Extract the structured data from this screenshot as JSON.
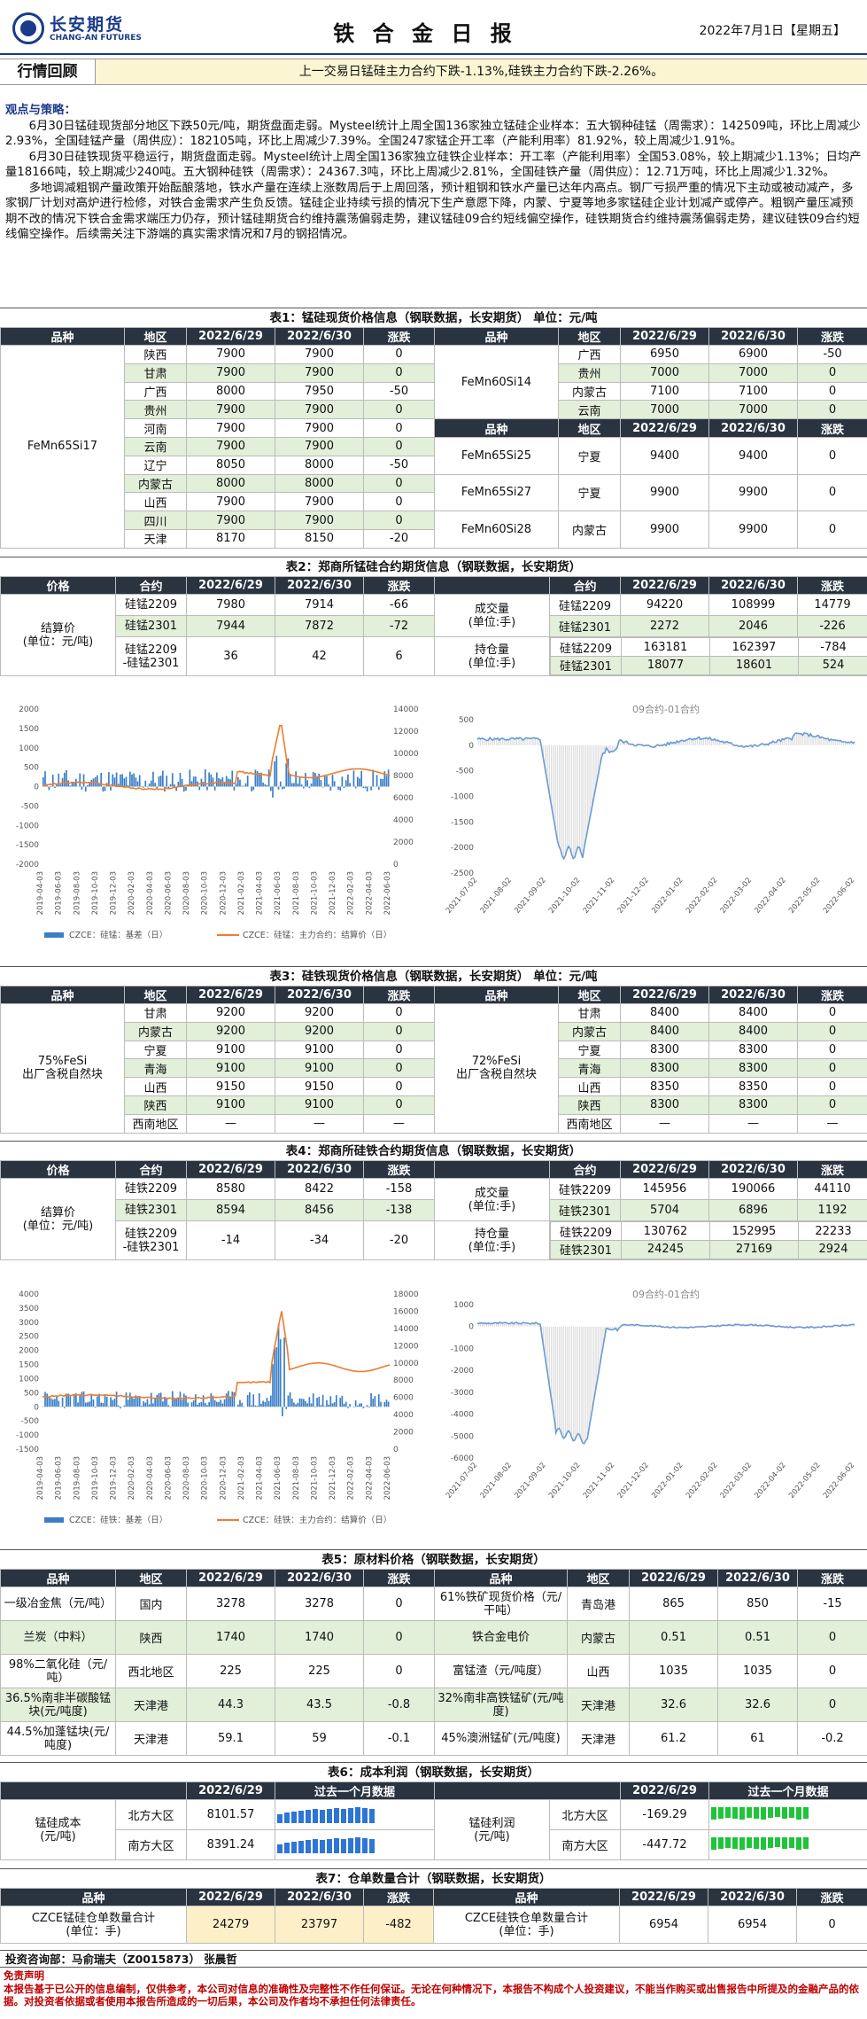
{
  "header": {
    "brand_cn": "长安期货",
    "brand_en": "CHANG-AN FUTURES",
    "title": "铁 合 金 日 报",
    "date": "2022年7月1日【星期五】"
  },
  "review": {
    "label": "行情回顾",
    "text": "上一交易日锰硅主力合约下跌-1.13%,硅铁主力合约下跌-2.26%。"
  },
  "strategy": {
    "heading": "观点与策略：",
    "p1": "6月30日锰硅现货部分地区下跌50元/吨，期货盘面走弱。Mysteel统计上周全国136家独立锰硅企业样本：五大钢种硅锰（周需求）：142509吨，环比上周减少2.93%，全国硅锰产量（周供应）：182105吨，环比上周减少7.39%。全国247家锰企开工率（产能利用率）81.92%，较上周减少1.91%。",
    "p2": "6月30日硅铁现货平稳运行，期货盘面走弱。Mysteel统计上周全国136家独立硅铁企业样本：开工率（产能利用率）全国53.08%，较上期减少1.13%；日均产量18166吨，较上期减少240吨。五大钢种硅铁（周需求）：24367.3吨，环比上周减少2.81%，全国硅铁产量（周供应）：12.71万吨，环比上周减少1.32%。",
    "p3": "多地调减粗钢产量政策开始酝酿落地，铁水产量在连续上涨数周后于上周回落，预计粗钢和铁水产量已达年内高点。钢厂亏损严重的情况下主动或被动减产，多家钢厂计划对高炉进行检修，对铁合金需求产生负反馈。锰硅企业持续亏损的情况下生产意愿下降，内蒙、宁夏等地多家锰硅企业计划减产或停产。粗钢产量压减预期不改的情况下铁合金需求端压力仍存，预计锰硅期货合约维持震荡偏弱走势，建议锰硅09合约短线偏空操作，硅铁期货合约维持震荡偏弱走势，建议硅铁09合约短线偏空操作。后续需关注下游端的真实需求情况和7月的钢招情况。"
  },
  "t1": {
    "caption": "表1：锰硅现货价格信息（钢联数据，长安期货） 单位：元/吨",
    "head": [
      "品种",
      "地区",
      "2022/6/29",
      "2022/6/30",
      "涨跌",
      "品种",
      "地区",
      "2022/6/29",
      "2022/6/30",
      "涨跌"
    ],
    "left_name": "FeMn65Si17",
    "left": [
      [
        "陕西",
        "7900",
        "7900",
        "0"
      ],
      [
        "甘肃",
        "7900",
        "7900",
        "0"
      ],
      [
        "广西",
        "8000",
        "7950",
        "-50"
      ],
      [
        "贵州",
        "7900",
        "7900",
        "0"
      ],
      [
        "河南",
        "7900",
        "7900",
        "0"
      ],
      [
        "云南",
        "7900",
        "7900",
        "0"
      ],
      [
        "辽宁",
        "8050",
        "8000",
        "-50"
      ],
      [
        "内蒙古",
        "8000",
        "8000",
        "0"
      ],
      [
        "山西",
        "7900",
        "7900",
        "0"
      ],
      [
        "四川",
        "7900",
        "7900",
        "0"
      ],
      [
        "天津",
        "8170",
        "8150",
        "-20"
      ]
    ],
    "r1_name": "FeMn60Si14",
    "r1": [
      [
        "广西",
        "6950",
        "6900",
        "-50"
      ],
      [
        "贵州",
        "7000",
        "7000",
        "0"
      ],
      [
        "内蒙古",
        "7100",
        "7100",
        "0"
      ],
      [
        "云南",
        "7000",
        "7000",
        "0"
      ]
    ],
    "r_head2": [
      "品种",
      "地区",
      "2022/6/29",
      "2022/6/30",
      "涨跌"
    ],
    "r2": [
      [
        "FeMn65Si25",
        "宁夏",
        "9400",
        "9400",
        "0"
      ],
      [
        "FeMn65Si27",
        "宁夏",
        "9900",
        "9900",
        "0"
      ],
      [
        "FeMn60Si28",
        "内蒙古",
        "9900",
        "9900",
        "0"
      ]
    ]
  },
  "t2": {
    "caption": "表2：郑商所锰硅合约期货信息（钢联数据，长安期货）",
    "head": [
      "价格",
      "合约",
      "2022/6/29",
      "2022/6/30",
      "涨跌",
      "",
      "合约",
      "2022/6/29",
      "2022/6/30",
      "涨跌"
    ],
    "settle": "结算价\n(单位：元/吨)",
    "rows": [
      [
        "硅锰2209",
        "7980",
        "7914",
        "-66"
      ],
      [
        "硅锰2301",
        "7944",
        "7872",
        "-72"
      ],
      [
        "硅锰2209\n-硅锰2301",
        "36",
        "42",
        "6"
      ]
    ],
    "vol_label": "成交量\n(单位:手)",
    "oi_label": "持仓量\n(单位:手)",
    "vol": [
      [
        "硅锰2209",
        "94220",
        "108999",
        "14779"
      ],
      [
        "硅锰2301",
        "2272",
        "2046",
        "-226"
      ]
    ],
    "oi": [
      [
        "硅锰2209",
        "163181",
        "162397",
        "-784"
      ],
      [
        "硅锰2301",
        "18077",
        "18601",
        "524"
      ]
    ]
  },
  "chart1": {
    "legend_a": "CZCE：硅锰：基差（日）",
    "legend_b": "CZCE：硅锰：主力合约：结算价（日）",
    "yl": [
      "2000",
      "1500",
      "1000",
      "500",
      "0",
      "-500",
      "-1000",
      "-1500",
      "-2000"
    ],
    "yr": [
      "14000",
      "12000",
      "10000",
      "8000",
      "6000",
      "4000",
      "2000",
      "0"
    ],
    "xt": [
      "2019-04-03",
      "2019-06-03",
      "2019-08-03",
      "2019-10-03",
      "2019-12-03",
      "2020-02-03",
      "2020-04-03",
      "2020-06-03",
      "2020-08-03",
      "2020-10-03",
      "2020-12-03",
      "2021-02-03",
      "2021-04-03",
      "2021-06-03",
      "2021-08-03",
      "2021-10-03",
      "2021-12-03",
      "2022-02-03",
      "2022-04-03",
      "2022-06-03"
    ]
  },
  "chart2": {
    "title": "09合约-01合约",
    "yl": [
      "500",
      "0",
      "-500",
      "-1000",
      "-1500",
      "-2000",
      "-2500"
    ],
    "xt": [
      "2021-07-02",
      "2021-08-02",
      "2021-09-02",
      "2021-10-02",
      "2021-11-02",
      "2021-12-02",
      "2022-01-02",
      "2022-02-02",
      "2022-03-02",
      "2022-04-02",
      "2022-05-02",
      "2022-06-02"
    ]
  },
  "t3": {
    "caption": "表3：硅铁现货价格信息（钢联数据，长安期货） 单位：元/吨",
    "head": [
      "品种",
      "地区",
      "2022/6/29",
      "2022/6/30",
      "涨跌",
      "品种",
      "地区",
      "2022/6/29",
      "2022/6/30",
      "涨跌"
    ],
    "left_name": "75%FeSi\n出厂含税自然块",
    "right_name": "72%FeSi\n出厂含税自然块",
    "left": [
      [
        "甘肃",
        "9200",
        "9200",
        "0"
      ],
      [
        "内蒙古",
        "9200",
        "9200",
        "0"
      ],
      [
        "宁夏",
        "9100",
        "9100",
        "0"
      ],
      [
        "青海",
        "9100",
        "9100",
        "0"
      ],
      [
        "山西",
        "9150",
        "9150",
        "0"
      ],
      [
        "陕西",
        "9100",
        "9100",
        "0"
      ],
      [
        "西南地区",
        "—",
        "—",
        "—"
      ]
    ],
    "right": [
      [
        "甘肃",
        "8400",
        "8400",
        "0"
      ],
      [
        "内蒙古",
        "8400",
        "8400",
        "0"
      ],
      [
        "宁夏",
        "8300",
        "8300",
        "0"
      ],
      [
        "青海",
        "8300",
        "8300",
        "0"
      ],
      [
        "山西",
        "8350",
        "8350",
        "0"
      ],
      [
        "陕西",
        "8300",
        "8300",
        "0"
      ],
      [
        "西南地区",
        "—",
        "—",
        "—"
      ]
    ]
  },
  "t4": {
    "caption": "表4：郑商所硅铁合约期货信息（钢联数据，长安期货）",
    "head": [
      "价格",
      "合约",
      "2022/6/29",
      "2022/6/30",
      "涨跌",
      "",
      "合约",
      "2022/6/29",
      "2022/6/30",
      "涨跌"
    ],
    "settle": "结算价\n(单位：元/吨)",
    "rows": [
      [
        "硅铁2209",
        "8580",
        "8422",
        "-158"
      ],
      [
        "硅铁2301",
        "8594",
        "8456",
        "-138"
      ],
      [
        "硅铁2209\n-硅铁2301",
        "-14",
        "-34",
        "-20"
      ]
    ],
    "vol_label": "成交量\n(单位:手)",
    "oi_label": "持仓量\n(单位:手)",
    "vol": [
      [
        "硅铁2209",
        "145956",
        "190066",
        "44110"
      ],
      [
        "硅铁2301",
        "5704",
        "6896",
        "1192"
      ]
    ],
    "oi": [
      [
        "硅铁2209",
        "130762",
        "152995",
        "22233"
      ],
      [
        "硅铁2301",
        "24245",
        "27169",
        "2924"
      ]
    ]
  },
  "chart3": {
    "legend_a": "CZCE：硅铁：基差（日）",
    "legend_b": "CZCE：硅铁：主力合约：结算价（日）",
    "yl": [
      "4000",
      "3500",
      "3000",
      "2500",
      "2000",
      "1500",
      "1000",
      "500",
      "0",
      "-500",
      "-1000",
      "-1500"
    ],
    "yr": [
      "18000",
      "16000",
      "14000",
      "12000",
      "10000",
      "8000",
      "6000",
      "4000",
      "2000",
      "0"
    ],
    "xt": [
      "2019-04-03",
      "2019-06-03",
      "2019-08-03",
      "2019-10-03",
      "2019-12-03",
      "2020-02-03",
      "2020-04-03",
      "2020-06-03",
      "2020-08-03",
      "2020-10-03",
      "2020-12-03",
      "2021-02-03",
      "2021-04-03",
      "2021-06-03",
      "2021-08-03",
      "2021-10-03",
      "2021-12-03",
      "2022-02-03",
      "2022-04-03",
      "2022-06-03"
    ]
  },
  "chart4": {
    "title": "09合约-01合约",
    "yl": [
      "1000",
      "0",
      "-1000",
      "-2000",
      "-3000",
      "-4000",
      "-5000",
      "-6000"
    ],
    "xt": [
      "2021-07-02",
      "2021-08-02",
      "2021-09-02",
      "2021-10-02",
      "2021-11-02",
      "2021-12-02",
      "2022-01-02",
      "2022-02-02",
      "2022-03-02",
      "2022-04-02",
      "2022-05-02",
      "2022-06-02"
    ]
  },
  "t5": {
    "caption": "表5：原材料价格（钢联数据，长安期货）",
    "head": [
      "品种",
      "地区",
      "2022/6/29",
      "2022/6/30",
      "涨跌",
      "品种",
      "地区",
      "2022/6/29",
      "2022/6/30",
      "涨跌"
    ],
    "rows": [
      [
        "一级冶金焦（元/吨）",
        "国内",
        "3278",
        "3278",
        "0",
        "61%铁矿现货价格（元/干吨）",
        "青岛港",
        "865",
        "850",
        "-15"
      ],
      [
        "兰炭（中料）",
        "陕西",
        "1740",
        "1740",
        "0",
        "铁合金电价",
        "内蒙古",
        "0.51",
        "0.51",
        "0"
      ],
      [
        "98%二氧化硅（元/吨）",
        "西北地区",
        "225",
        "225",
        "0",
        "富锰渣（元/吨度）",
        "山西",
        "1035",
        "1035",
        "0"
      ],
      [
        "36.5%南非半碳酸锰块(元/吨度)",
        "天津港",
        "44.3",
        "43.5",
        "-0.8",
        "32%南非高铁锰矿(元/吨度)",
        "天津港",
        "32.6",
        "32.6",
        "0"
      ],
      [
        "44.5%加蓬锰块(元/吨度)",
        "天津港",
        "59.1",
        "59",
        "-0.1",
        "45%澳洲锰矿(元/吨度)",
        "天津港",
        "61.2",
        "61",
        "-0.2"
      ]
    ]
  },
  "t6": {
    "caption": "表6：成本利润（钢联数据，长安期货）",
    "head": [
      "2022/6/29",
      "过去一个月数据",
      "2022/6/29",
      "过去一个月数据"
    ],
    "cost_label": "锰硅成本\n(元/吨)",
    "profit_label": "锰硅利润\n(元/吨)",
    "cost": [
      [
        "北方大区",
        "8101.57"
      ],
      [
        "南方大区",
        "8391.24"
      ]
    ],
    "profit": [
      [
        "北方大区",
        "-169.29"
      ],
      [
        "南方大区",
        "-447.72"
      ]
    ]
  },
  "t7": {
    "caption": "表7：仓单数量合计（钢联数据，长安期货）",
    "head": [
      "品种",
      "2022/6/29",
      "2022/6/30",
      "涨跌",
      "品种",
      "2022/6/29",
      "2022/6/30",
      "涨跌"
    ],
    "row": [
      "CZCE锰硅仓单数量合计\n(单位：手)",
      "24279",
      "23797",
      "-482",
      "CZCE硅铁仓单数量合计\n(单位：手)",
      "6954",
      "6954",
      "0"
    ]
  },
  "staff": "投资咨询部：马俞瑞夫（Z0015873） 张晨哲",
  "disclaimer": {
    "title": "免责声明",
    "text": "本报告基于已公开的信息编制，仅供参考，本公司对信息的准确性及完整性不作任何保证。无论在何种情况下，本报告不构成个人投资建议，不能当作购买或出售报告中所提及的金融产品的依据。对投资者依据或者使用本报告所造成的一切后果，本公司及作者均不承担任何法律责任。"
  },
  "colors": {
    "navy": "#1a3a8a",
    "header_dark": "#2a3441",
    "green": "#e2efd9",
    "bar_blue": "#3a7ec6",
    "line_orange": "#ed7d31",
    "spread": "#6b9bd1",
    "spark_blue": "#2e75d6",
    "spark_green": "#1fc43b"
  }
}
